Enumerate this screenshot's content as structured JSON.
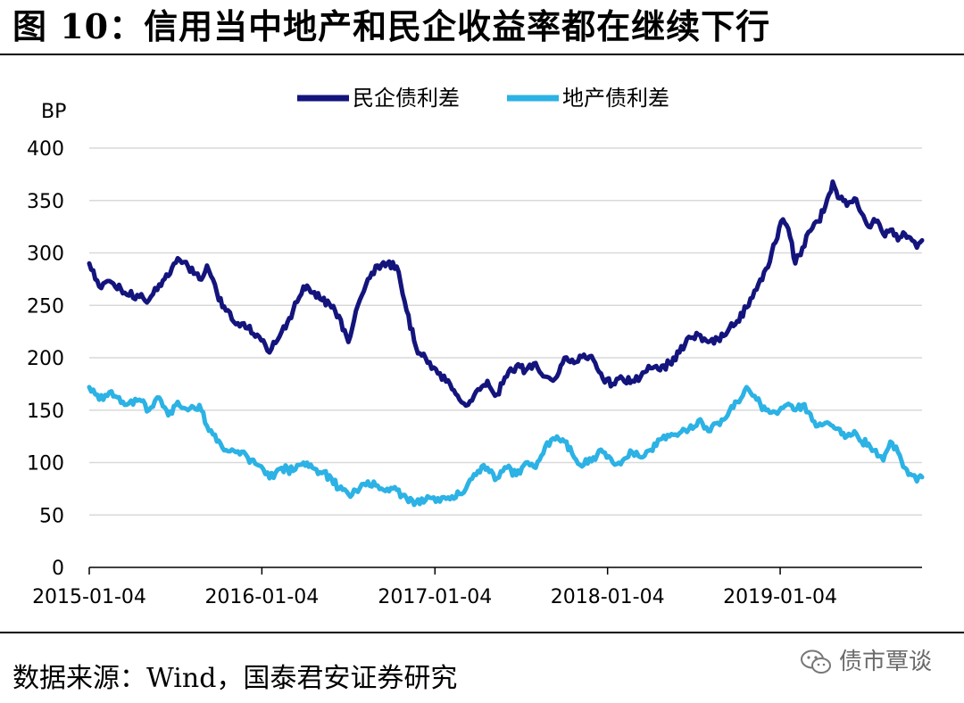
{
  "figure": {
    "title": "图 10：信用当中地产和民企收益率都在继续下行",
    "source": "数据来源：Wind，国泰君安证券研究",
    "watermark": "债市覃谈",
    "watermark_icon": "wechat-icon"
  },
  "chart_data": {
    "type": "line",
    "title": "",
    "xlabel": "",
    "ylabel": "BP",
    "ylim": [
      0,
      400
    ],
    "yticks": [
      0,
      50,
      100,
      150,
      200,
      250,
      300,
      350,
      400
    ],
    "xlim": [
      "2015-01-04",
      "2019-10-31"
    ],
    "xticks": [
      "2015-01-04",
      "2016-01-04",
      "2017-01-04",
      "2018-01-04",
      "2019-01-04"
    ],
    "grid": "horizontal",
    "legend_position": "top-center",
    "series": [
      {
        "name": "民企债利差",
        "color": "#14147d",
        "points": [
          [
            "2015-01-04",
            290
          ],
          [
            "2015-01-25",
            268
          ],
          [
            "2015-02-20",
            272
          ],
          [
            "2015-03-20",
            262
          ],
          [
            "2015-04-20",
            258
          ],
          [
            "2015-05-10",
            255
          ],
          [
            "2015-06-01",
            270
          ],
          [
            "2015-06-20",
            278
          ],
          [
            "2015-07-10",
            295
          ],
          [
            "2015-08-01",
            287
          ],
          [
            "2015-08-25",
            275
          ],
          [
            "2015-09-10",
            288
          ],
          [
            "2015-10-01",
            262
          ],
          [
            "2015-10-20",
            245
          ],
          [
            "2015-11-10",
            232
          ],
          [
            "2015-12-05",
            228
          ],
          [
            "2015-12-25",
            222
          ],
          [
            "2016-01-20",
            205
          ],
          [
            "2016-02-15",
            225
          ],
          [
            "2016-03-10",
            245
          ],
          [
            "2016-04-01",
            268
          ],
          [
            "2016-04-20",
            262
          ],
          [
            "2016-05-10",
            255
          ],
          [
            "2016-05-30",
            248
          ],
          [
            "2016-06-15",
            240
          ],
          [
            "2016-07-05",
            215
          ],
          [
            "2016-07-25",
            250
          ],
          [
            "2016-08-15",
            275
          ],
          [
            "2016-09-05",
            288
          ],
          [
            "2016-09-25",
            290
          ],
          [
            "2016-10-15",
            287
          ],
          [
            "2016-11-05",
            245
          ],
          [
            "2016-11-25",
            210
          ],
          [
            "2016-12-15",
            200
          ],
          [
            "2017-01-10",
            185
          ],
          [
            "2017-02-05",
            175
          ],
          [
            "2017-02-25",
            160
          ],
          [
            "2017-03-15",
            155
          ],
          [
            "2017-04-05",
            170
          ],
          [
            "2017-04-25",
            178
          ],
          [
            "2017-05-15",
            165
          ],
          [
            "2017-06-05",
            182
          ],
          [
            "2017-06-25",
            192
          ],
          [
            "2017-07-15",
            188
          ],
          [
            "2017-08-05",
            195
          ],
          [
            "2017-08-25",
            182
          ],
          [
            "2017-09-15",
            180
          ],
          [
            "2017-10-05",
            200
          ],
          [
            "2017-10-25",
            195
          ],
          [
            "2017-11-15",
            203
          ],
          [
            "2017-12-05",
            198
          ],
          [
            "2017-12-25",
            180
          ],
          [
            "2018-01-15",
            175
          ],
          [
            "2018-02-05",
            180
          ],
          [
            "2018-02-25",
            178
          ],
          [
            "2018-03-15",
            182
          ],
          [
            "2018-04-05",
            190
          ],
          [
            "2018-04-25",
            188
          ],
          [
            "2018-05-15",
            195
          ],
          [
            "2018-06-05",
            205
          ],
          [
            "2018-06-25",
            220
          ],
          [
            "2018-07-15",
            222
          ],
          [
            "2018-08-05",
            215
          ],
          [
            "2018-08-25",
            218
          ],
          [
            "2018-09-15",
            225
          ],
          [
            "2018-10-05",
            235
          ],
          [
            "2018-10-25",
            248
          ],
          [
            "2018-11-15",
            265
          ],
          [
            "2018-12-05",
            285
          ],
          [
            "2018-12-25",
            310
          ],
          [
            "2019-01-10",
            332
          ],
          [
            "2019-01-25",
            315
          ],
          [
            "2019-02-05",
            290
          ],
          [
            "2019-02-20",
            305
          ],
          [
            "2019-03-05",
            320
          ],
          [
            "2019-03-25",
            330
          ],
          [
            "2019-04-10",
            345
          ],
          [
            "2019-04-25",
            368
          ],
          [
            "2019-05-10",
            352
          ],
          [
            "2019-05-25",
            345
          ],
          [
            "2019-06-10",
            352
          ],
          [
            "2019-06-25",
            338
          ],
          [
            "2019-07-10",
            325
          ],
          [
            "2019-07-25",
            330
          ],
          [
            "2019-08-10",
            318
          ],
          [
            "2019-08-25",
            322
          ],
          [
            "2019-09-10",
            312
          ],
          [
            "2019-09-25",
            318
          ],
          [
            "2019-10-10",
            312
          ],
          [
            "2019-10-20",
            305
          ],
          [
            "2019-10-31",
            312
          ]
        ]
      },
      {
        "name": "地产债利差",
        "color": "#2cb2e4",
        "points": [
          [
            "2015-01-04",
            172
          ],
          [
            "2015-01-25",
            160
          ],
          [
            "2015-02-20",
            168
          ],
          [
            "2015-03-20",
            155
          ],
          [
            "2015-04-20",
            160
          ],
          [
            "2015-05-10",
            150
          ],
          [
            "2015-06-01",
            162
          ],
          [
            "2015-06-20",
            145
          ],
          [
            "2015-07-10",
            158
          ],
          [
            "2015-08-01",
            150
          ],
          [
            "2015-08-25",
            155
          ],
          [
            "2015-09-10",
            135
          ],
          [
            "2015-10-01",
            120
          ],
          [
            "2015-10-20",
            112
          ],
          [
            "2015-11-10",
            110
          ],
          [
            "2015-12-05",
            105
          ],
          [
            "2015-12-25",
            98
          ],
          [
            "2016-01-20",
            85
          ],
          [
            "2016-02-15",
            95
          ],
          [
            "2016-03-10",
            92
          ],
          [
            "2016-04-01",
            100
          ],
          [
            "2016-04-20",
            95
          ],
          [
            "2016-05-10",
            90
          ],
          [
            "2016-05-30",
            85
          ],
          [
            "2016-06-15",
            75
          ],
          [
            "2016-07-05",
            70
          ],
          [
            "2016-07-25",
            72
          ],
          [
            "2016-08-15",
            82
          ],
          [
            "2016-09-05",
            78
          ],
          [
            "2016-09-25",
            75
          ],
          [
            "2016-10-15",
            74
          ],
          [
            "2016-11-05",
            66
          ],
          [
            "2016-11-25",
            62
          ],
          [
            "2016-12-15",
            64
          ],
          [
            "2017-01-10",
            66
          ],
          [
            "2017-02-05",
            65
          ],
          [
            "2017-02-25",
            70
          ],
          [
            "2017-03-15",
            80
          ],
          [
            "2017-04-05",
            92
          ],
          [
            "2017-04-25",
            95
          ],
          [
            "2017-05-15",
            85
          ],
          [
            "2017-06-05",
            95
          ],
          [
            "2017-06-25",
            88
          ],
          [
            "2017-07-15",
            100
          ],
          [
            "2017-08-05",
            95
          ],
          [
            "2017-08-25",
            115
          ],
          [
            "2017-09-15",
            122
          ],
          [
            "2017-10-05",
            120
          ],
          [
            "2017-10-25",
            105
          ],
          [
            "2017-11-15",
            98
          ],
          [
            "2017-12-05",
            105
          ],
          [
            "2017-12-25",
            110
          ],
          [
            "2018-01-15",
            100
          ],
          [
            "2018-02-05",
            102
          ],
          [
            "2018-02-25",
            110
          ],
          [
            "2018-03-15",
            105
          ],
          [
            "2018-04-05",
            112
          ],
          [
            "2018-04-25",
            122
          ],
          [
            "2018-05-15",
            125
          ],
          [
            "2018-06-05",
            128
          ],
          [
            "2018-06-25",
            132
          ],
          [
            "2018-07-15",
            140
          ],
          [
            "2018-08-05",
            130
          ],
          [
            "2018-08-25",
            138
          ],
          [
            "2018-09-15",
            145
          ],
          [
            "2018-10-05",
            158
          ],
          [
            "2018-10-25",
            172
          ],
          [
            "2018-11-15",
            160
          ],
          [
            "2018-12-05",
            150
          ],
          [
            "2018-12-25",
            148
          ],
          [
            "2019-01-10",
            152
          ],
          [
            "2019-01-25",
            155
          ],
          [
            "2019-02-05",
            150
          ],
          [
            "2019-02-20",
            155
          ],
          [
            "2019-03-05",
            148
          ],
          [
            "2019-03-25",
            135
          ],
          [
            "2019-04-10",
            138
          ],
          [
            "2019-04-25",
            135
          ],
          [
            "2019-05-10",
            132
          ],
          [
            "2019-05-25",
            125
          ],
          [
            "2019-06-10",
            130
          ],
          [
            "2019-06-25",
            120
          ],
          [
            "2019-07-10",
            118
          ],
          [
            "2019-07-25",
            112
          ],
          [
            "2019-08-10",
            102
          ],
          [
            "2019-08-25",
            120
          ],
          [
            "2019-09-10",
            110
          ],
          [
            "2019-09-25",
            95
          ],
          [
            "2019-10-10",
            88
          ],
          [
            "2019-10-20",
            82
          ],
          [
            "2019-10-31",
            86
          ]
        ]
      }
    ]
  }
}
